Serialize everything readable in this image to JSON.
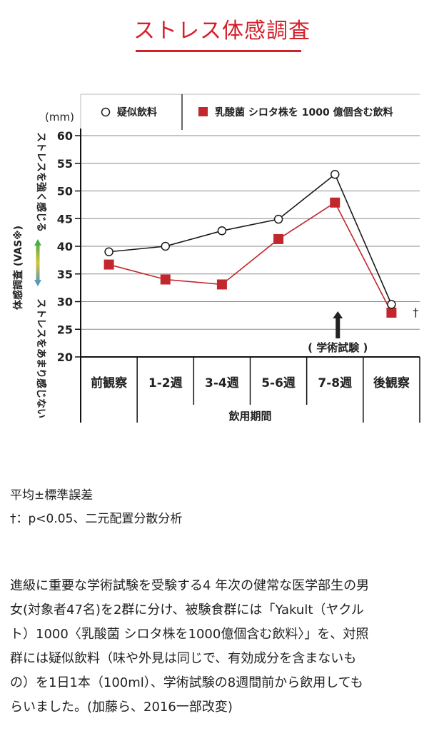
{
  "title": "ストレス体感調査",
  "chart_data": {
    "type": "line",
    "unit": "(mm)",
    "categories": [
      "前観察",
      "1-2週",
      "3-4週",
      "5-6週",
      "7-8週",
      "後観察"
    ],
    "ylim": [
      20,
      60
    ],
    "yticks": [
      20,
      25,
      30,
      35,
      40,
      45,
      50,
      55,
      60
    ],
    "ylabel_main": "体感調査 (VAS※)",
    "ylabel_top": "ストレスを強く感じる",
    "ylabel_bottom": "ストレスをあまり感じない",
    "xlabel": "飲用期間",
    "series": [
      {
        "name": "疑似飲料",
        "marker": "circle",
        "color": "#1a1a1a",
        "values": [
          39.0,
          40.0,
          42.8,
          44.9,
          53.0,
          29.5
        ]
      },
      {
        "name": "乳酸菌 シロタ株を 1000 億個含む飲料",
        "marker": "square",
        "color": "#c1272d",
        "values": [
          36.7,
          34.0,
          33.1,
          41.3,
          47.9,
          28.0
        ]
      }
    ],
    "event": {
      "label": "( 学術試験 )",
      "category_index": 4
    },
    "significance": {
      "label": "†",
      "category_index": 5
    },
    "grid": true,
    "legend_position": "top"
  },
  "notes": [
    "平均±標準誤差",
    "†：p<0.05、二元配置分散分析"
  ],
  "description": [
    "進級に重要な学術試験を受験する4 年次の健常な医学部生の男",
    "女(対象者47名)を2群に分け、被験食群には「Yakult（ヤクル",
    "ト）1000〈乳酸菌 シロタ株を1000億個含む飲料〉」を、対照",
    "群には疑似飲料（味や外見は同じで、有効成分を含まないも",
    "の）を1日1本（100ml）、学術試験の8週間前から飲用しても",
    "らいました。(加藤ら、2016一部改変)"
  ]
}
